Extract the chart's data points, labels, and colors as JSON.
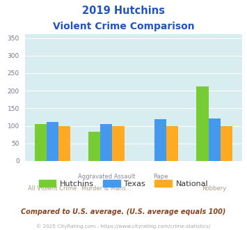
{
  "title_line1": "2019 Hutchins",
  "title_line2": "Violent Crime Comparison",
  "cat_labels_top": [
    "",
    "Aggravated Assault",
    "Rape",
    ""
  ],
  "cat_labels_bottom": [
    "All Violent Crime",
    "Murder & Mans...",
    "",
    "Robbery"
  ],
  "hutchins": [
    105,
    84,
    0,
    212
  ],
  "texas": [
    111,
    105,
    119,
    121
  ],
  "national": [
    100,
    99,
    100,
    99
  ],
  "hutchins_color": "#77cc33",
  "texas_color": "#4499ee",
  "national_color": "#ffaa22",
  "ylim": [
    0,
    360
  ],
  "yticks": [
    0,
    50,
    100,
    150,
    200,
    250,
    300,
    350
  ],
  "bg_color": "#d8edf0",
  "title_color": "#2255bb",
  "axis_label_color_top": "#888899",
  "axis_label_color_bottom": "#aa9988",
  "footer_text": "Compared to U.S. average. (U.S. average equals 100)",
  "copyright_text": "© 2025 CityRating.com - https://www.cityrating.com/crime-statistics/",
  "footer_color": "#884422",
  "copyright_color": "#aaaaaa",
  "legend_labels": [
    "Hutchins",
    "Texas",
    "National"
  ]
}
